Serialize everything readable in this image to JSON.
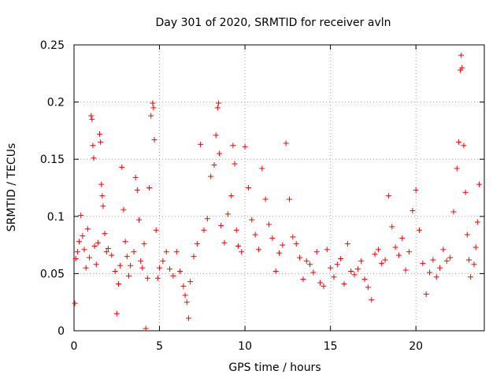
{
  "chart_data": {
    "type": "scatter",
    "title": "Day 301 of 2020, SRMTID for receiver avln",
    "xlabel": "GPS time / hours",
    "ylabel": "SRMTID / TECUs",
    "xlim": [
      0,
      24
    ],
    "ylim": [
      0,
      0.25
    ],
    "xticks": [
      0,
      5,
      10,
      15,
      20
    ],
    "xtick_labels": [
      "0",
      "5",
      "10",
      "15",
      "20"
    ],
    "yticks": [
      0,
      0.05,
      0.1,
      0.15,
      0.2,
      0.25
    ],
    "ytick_labels": [
      "0",
      "0.05",
      "0.1",
      "0.15",
      "0.2",
      "0.25"
    ],
    "grid": true,
    "marker": "plus",
    "color": "#ff0000",
    "series": [
      {
        "name": "SRMTID",
        "points": [
          [
            0.05,
            0.024
          ],
          [
            0.1,
            0.063
          ],
          [
            0.2,
            0.069
          ],
          [
            0.3,
            0.078
          ],
          [
            0.4,
            0.101
          ],
          [
            0.5,
            0.083
          ],
          [
            0.6,
            0.071
          ],
          [
            0.7,
            0.055
          ],
          [
            0.8,
            0.089
          ],
          [
            0.9,
            0.064
          ],
          [
            1.0,
            0.188
          ],
          [
            1.05,
            0.185
          ],
          [
            1.1,
            0.162
          ],
          [
            1.15,
            0.151
          ],
          [
            1.2,
            0.074
          ],
          [
            1.3,
            0.058
          ],
          [
            1.4,
            0.077
          ],
          [
            1.5,
            0.172
          ],
          [
            1.55,
            0.165
          ],
          [
            1.6,
            0.128
          ],
          [
            1.65,
            0.118
          ],
          [
            1.7,
            0.109
          ],
          [
            1.8,
            0.085
          ],
          [
            1.9,
            0.069
          ],
          [
            2.0,
            0.072
          ],
          [
            2.2,
            0.066
          ],
          [
            2.4,
            0.052
          ],
          [
            2.5,
            0.015
          ],
          [
            2.6,
            0.041
          ],
          [
            2.7,
            0.057
          ],
          [
            2.8,
            0.143
          ],
          [
            2.9,
            0.106
          ],
          [
            3.0,
            0.078
          ],
          [
            3.1,
            0.065
          ],
          [
            3.2,
            0.048
          ],
          [
            3.3,
            0.057
          ],
          [
            3.5,
            0.069
          ],
          [
            3.6,
            0.134
          ],
          [
            3.7,
            0.123
          ],
          [
            3.8,
            0.097
          ],
          [
            3.9,
            0.061
          ],
          [
            4.0,
            0.055
          ],
          [
            4.1,
            0.076
          ],
          [
            4.2,
            0.002
          ],
          [
            4.3,
            0.046
          ],
          [
            4.4,
            0.125
          ],
          [
            4.5,
            0.188
          ],
          [
            4.6,
            0.199
          ],
          [
            4.65,
            0.195
          ],
          [
            4.7,
            0.167
          ],
          [
            4.8,
            0.088
          ],
          [
            4.9,
            0.046
          ],
          [
            5.0,
            0.055
          ],
          [
            5.2,
            0.061
          ],
          [
            5.4,
            0.069
          ],
          [
            5.6,
            0.054
          ],
          [
            5.8,
            0.048
          ],
          [
            6.0,
            0.069
          ],
          [
            6.2,
            0.052
          ],
          [
            6.4,
            0.039
          ],
          [
            6.5,
            0.031
          ],
          [
            6.6,
            0.025
          ],
          [
            6.7,
            0.011
          ],
          [
            6.8,
            0.043
          ],
          [
            7.0,
            0.065
          ],
          [
            7.2,
            0.076
          ],
          [
            7.4,
            0.163
          ],
          [
            7.6,
            0.088
          ],
          [
            7.8,
            0.098
          ],
          [
            8.0,
            0.135
          ],
          [
            8.2,
            0.145
          ],
          [
            8.3,
            0.171
          ],
          [
            8.4,
            0.195
          ],
          [
            8.45,
            0.199
          ],
          [
            8.5,
            0.155
          ],
          [
            8.6,
            0.092
          ],
          [
            8.8,
            0.077
          ],
          [
            9.0,
            0.102
          ],
          [
            9.2,
            0.118
          ],
          [
            9.3,
            0.162
          ],
          [
            9.4,
            0.146
          ],
          [
            9.5,
            0.088
          ],
          [
            9.6,
            0.074
          ],
          [
            9.8,
            0.069
          ],
          [
            10.0,
            0.161
          ],
          [
            10.2,
            0.125
          ],
          [
            10.4,
            0.097
          ],
          [
            10.6,
            0.084
          ],
          [
            10.8,
            0.071
          ],
          [
            11.0,
            0.142
          ],
          [
            11.2,
            0.115
          ],
          [
            11.4,
            0.093
          ],
          [
            11.6,
            0.081
          ],
          [
            11.8,
            0.052
          ],
          [
            12.0,
            0.068
          ],
          [
            12.2,
            0.075
          ],
          [
            12.4,
            0.164
          ],
          [
            12.6,
            0.115
          ],
          [
            12.8,
            0.082
          ],
          [
            13.0,
            0.076
          ],
          [
            13.2,
            0.064
          ],
          [
            13.4,
            0.045
          ],
          [
            13.6,
            0.061
          ],
          [
            13.8,
            0.058
          ],
          [
            14.0,
            0.051
          ],
          [
            14.2,
            0.069
          ],
          [
            14.4,
            0.042
          ],
          [
            14.6,
            0.039
          ],
          [
            14.8,
            0.071
          ],
          [
            15.0,
            0.055
          ],
          [
            15.2,
            0.047
          ],
          [
            15.4,
            0.058
          ],
          [
            15.6,
            0.063
          ],
          [
            15.8,
            0.041
          ],
          [
            16.0,
            0.076
          ],
          [
            16.2,
            0.052
          ],
          [
            16.4,
            0.049
          ],
          [
            16.6,
            0.054
          ],
          [
            16.8,
            0.061
          ],
          [
            17.0,
            0.045
          ],
          [
            17.2,
            0.038
          ],
          [
            17.4,
            0.027
          ],
          [
            17.6,
            0.067
          ],
          [
            17.8,
            0.071
          ],
          [
            18.0,
            0.059
          ],
          [
            18.2,
            0.062
          ],
          [
            18.4,
            0.118
          ],
          [
            18.6,
            0.091
          ],
          [
            18.8,
            0.073
          ],
          [
            19.0,
            0.066
          ],
          [
            19.2,
            0.081
          ],
          [
            19.4,
            0.053
          ],
          [
            19.6,
            0.069
          ],
          [
            19.8,
            0.105
          ],
          [
            20.0,
            0.123
          ],
          [
            20.2,
            0.088
          ],
          [
            20.4,
            0.059
          ],
          [
            20.6,
            0.032
          ],
          [
            20.8,
            0.051
          ],
          [
            21.0,
            0.062
          ],
          [
            21.2,
            0.047
          ],
          [
            21.4,
            0.055
          ],
          [
            21.6,
            0.071
          ],
          [
            21.8,
            0.061
          ],
          [
            22.0,
            0.064
          ],
          [
            22.2,
            0.104
          ],
          [
            22.4,
            0.142
          ],
          [
            22.5,
            0.165
          ],
          [
            22.6,
            0.228
          ],
          [
            22.65,
            0.241
          ],
          [
            22.7,
            0.23
          ],
          [
            22.8,
            0.162
          ],
          [
            22.9,
            0.121
          ],
          [
            23.0,
            0.084
          ],
          [
            23.1,
            0.062
          ],
          [
            23.2,
            0.047
          ],
          [
            23.4,
            0.058
          ],
          [
            23.5,
            0.073
          ],
          [
            23.6,
            0.095
          ],
          [
            23.7,
            0.128
          ]
        ]
      }
    ]
  }
}
